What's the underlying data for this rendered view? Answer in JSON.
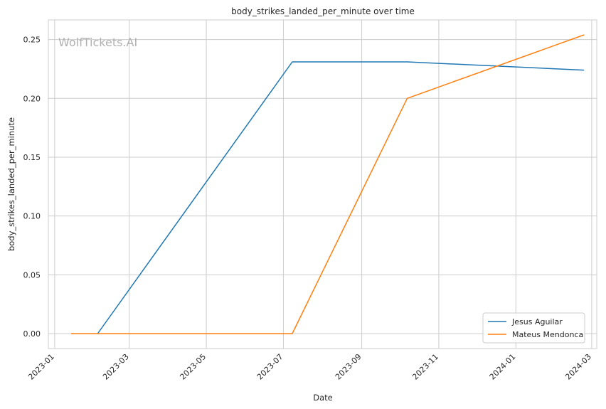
{
  "chart_data": {
    "type": "line",
    "title": "body_strikes_landed_per_minute over time",
    "xlabel": "Date",
    "ylabel": "body_strikes_landed_per_minute",
    "watermark": "WolfTickets.AI",
    "x_ticks": [
      "2023-01",
      "2023-03",
      "2023-05",
      "2023-07",
      "2023-09",
      "2023-11",
      "2024-01",
      "2024-03"
    ],
    "y_ticks": [
      "0.00",
      "0.05",
      "0.10",
      "0.15",
      "0.20",
      "0.25"
    ],
    "xlim": [
      "2022-12-27",
      "2024-03-05"
    ],
    "ylim": [
      -0.0127,
      0.2667
    ],
    "grid": true,
    "legend_position": "lower-right",
    "series": [
      {
        "name": "Jesus Aguilar",
        "color": "#1f77b4",
        "x": [
          "2023-02-04",
          "2023-07-08",
          "2023-10-07",
          "2024-02-24"
        ],
        "y": [
          0.0,
          0.231,
          0.231,
          0.224
        ]
      },
      {
        "name": "Mateus Mendonca",
        "color": "#ff7f0e",
        "x": [
          "2023-01-14",
          "2023-07-08",
          "2023-10-07",
          "2024-02-24"
        ],
        "y": [
          0.0,
          0.0,
          0.2,
          0.254
        ]
      }
    ]
  }
}
